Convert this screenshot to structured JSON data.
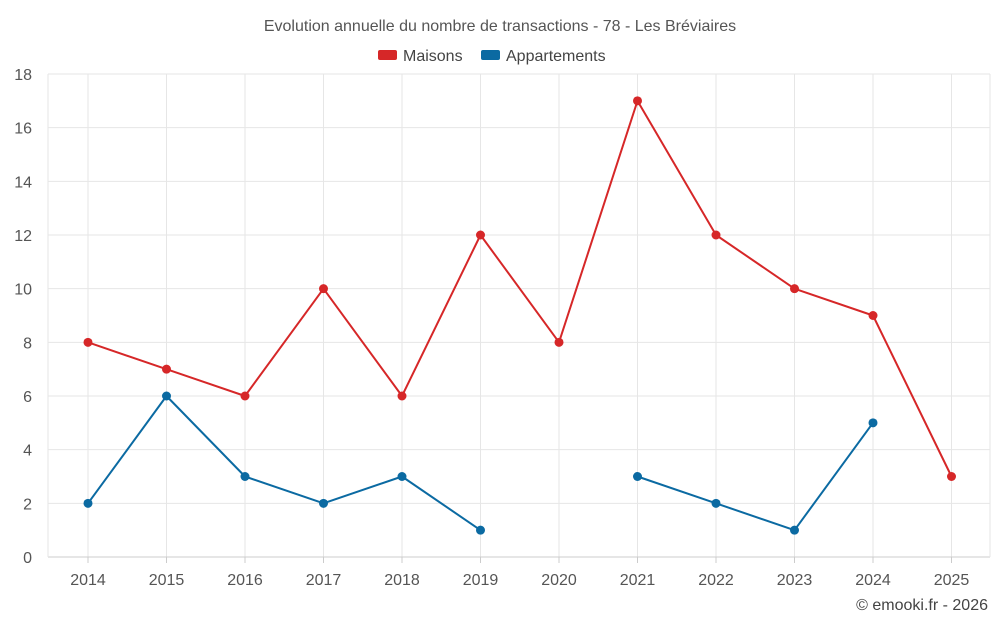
{
  "chart_data": {
    "type": "line",
    "title": "Evolution annuelle du nombre de transactions - 78 - Les Bréviaires",
    "categories": [
      "2014",
      "2015",
      "2016",
      "2017",
      "2018",
      "2019",
      "2020",
      "2021",
      "2022",
      "2023",
      "2024",
      "2025"
    ],
    "series": [
      {
        "name": "Maisons",
        "color": "#d62728",
        "values": [
          8,
          7,
          6,
          10,
          6,
          12,
          8,
          17,
          12,
          10,
          9,
          3
        ]
      },
      {
        "name": "Appartements",
        "color": "#0b6aa2",
        "values": [
          2,
          6,
          3,
          2,
          3,
          1,
          null,
          3,
          2,
          1,
          5,
          null
        ]
      }
    ],
    "ylim": [
      0,
      18
    ],
    "yticks": [
      "0",
      "2",
      "4",
      "6",
      "8",
      "10",
      "12",
      "14",
      "16",
      "18"
    ],
    "grid": true,
    "legend": "top-center",
    "xlabel": "",
    "ylabel": ""
  },
  "credit": "© emooki.fr - 2026"
}
